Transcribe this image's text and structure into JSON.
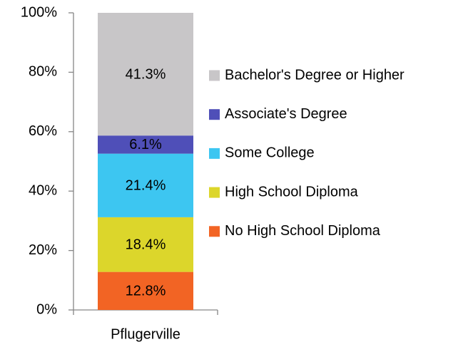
{
  "chart_data": {
    "type": "stacked_bar",
    "categories": [
      "Pflugerville"
    ],
    "series": [
      {
        "name": "No High School Diploma",
        "color": "#f26424",
        "values": [
          12.8
        ],
        "value_labels": [
          "12.8%"
        ]
      },
      {
        "name": "High School Diploma",
        "color": "#dcd62b",
        "values": [
          18.4
        ],
        "value_labels": [
          "18.4%"
        ]
      },
      {
        "name": "Some College",
        "color": "#3dc6f1",
        "values": [
          21.4
        ],
        "value_labels": [
          "21.4%"
        ]
      },
      {
        "name": "Associate's Degree",
        "color": "#4f4fb8",
        "values": [
          6.1
        ],
        "value_labels": [
          "6.1%"
        ]
      },
      {
        "name": "Bachelor's Degree or Higher",
        "color": "#c8c6c8",
        "values": [
          41.3
        ],
        "value_labels": [
          "41.3%"
        ]
      }
    ],
    "ylim": [
      0,
      100
    ],
    "yticks": [
      {
        "value": 0,
        "label": "0%"
      },
      {
        "value": 20,
        "label": "20%"
      },
      {
        "value": 40,
        "label": "40%"
      },
      {
        "value": 60,
        "label": "60%"
      },
      {
        "value": 80,
        "label": "80%"
      },
      {
        "value": 100,
        "label": "100%"
      }
    ],
    "legend": "right"
  }
}
